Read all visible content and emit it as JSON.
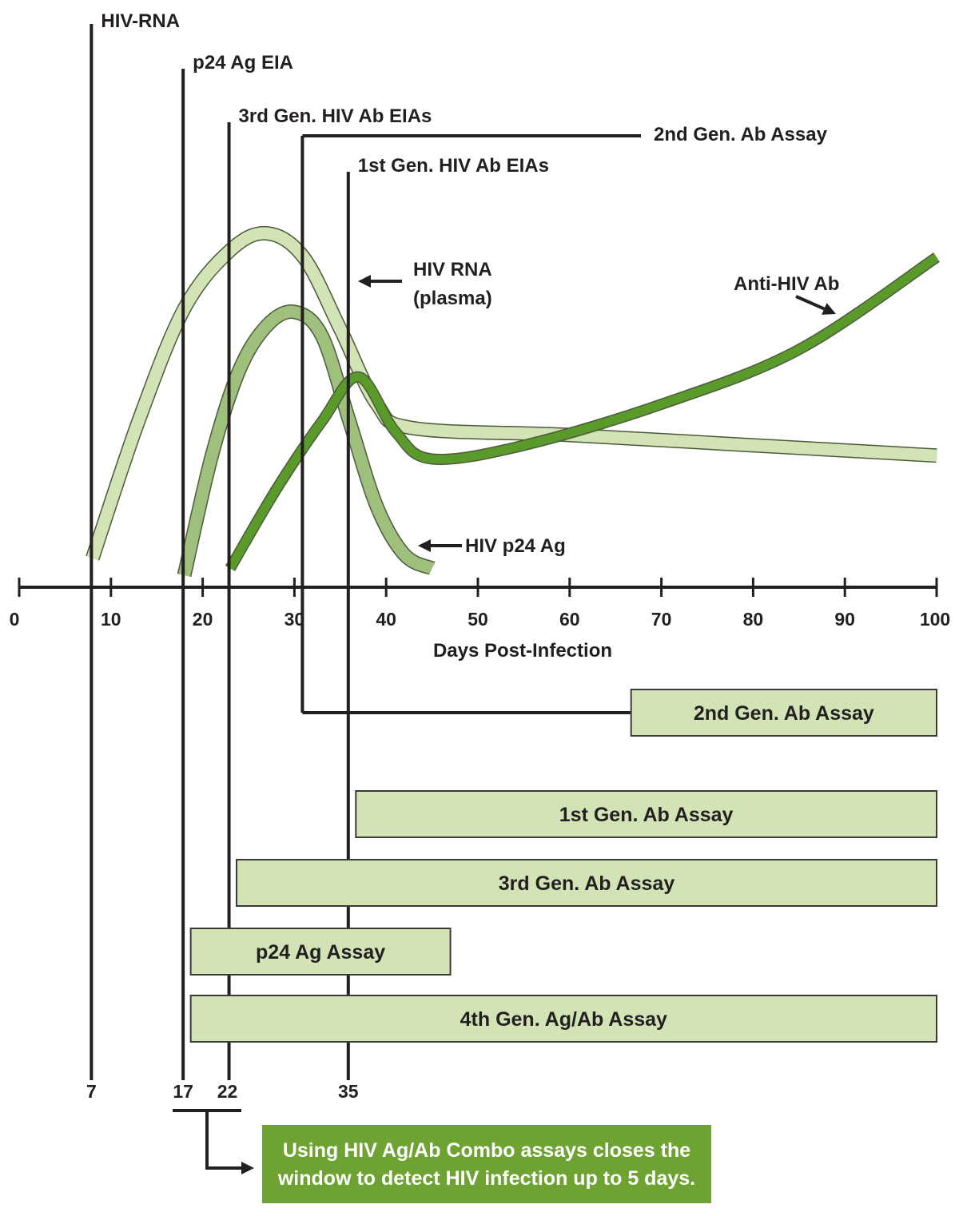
{
  "chart_data": {
    "type": "line",
    "xlabel": "Days Post-Infection",
    "xlim": [
      0,
      100
    ],
    "x_ticks": [
      "0",
      "10",
      "20",
      "30",
      "40",
      "50",
      "60",
      "70",
      "80",
      "90",
      "100"
    ],
    "series": [
      {
        "name": "HIV RNA",
        "name_line2": "(plasma)",
        "color": "#d2e4b6",
        "x": [
          8,
          13,
          18,
          23,
          27,
          31,
          35,
          39,
          43,
          60,
          80,
          100
        ],
        "y": [
          0.05,
          0.45,
          0.78,
          0.95,
          1.0,
          0.93,
          0.72,
          0.5,
          0.43,
          0.41,
          0.38,
          0.35
        ]
      },
      {
        "name": "HIV p24 Ag",
        "color": "#9ec07c",
        "x": [
          18,
          21,
          24,
          27,
          30,
          33,
          36,
          39,
          42,
          45
        ],
        "y": [
          0.0,
          0.35,
          0.6,
          0.73,
          0.77,
          0.7,
          0.45,
          0.2,
          0.06,
          0.02
        ]
      },
      {
        "name": "Anti-HIV Ab",
        "color": "#5a9a2a",
        "x": [
          23,
          28,
          33,
          37,
          41,
          45,
          55,
          70,
          85,
          100
        ],
        "y": [
          0.02,
          0.25,
          0.45,
          0.58,
          0.42,
          0.34,
          0.38,
          0.5,
          0.66,
          0.93
        ]
      }
    ],
    "assay_markers": [
      {
        "label": "HIV-RNA",
        "day": 7
      },
      {
        "label": "p24 Ag EIA",
        "day": 17
      },
      {
        "label": "3rd Gen. HIV Ab EIAs",
        "day": 22
      },
      {
        "label": "2nd Gen. Ab Assay",
        "day": 30
      },
      {
        "label": "1st Gen. HIV Ab EIAs",
        "day": 35
      }
    ],
    "window_days": [
      "7",
      "17",
      "22",
      "35"
    ],
    "bars": [
      {
        "label": "2nd Gen. Ab Assay",
        "start": 66,
        "end": 100
      },
      {
        "label": "1st Gen. Ab Assay",
        "start": 36,
        "end": 100
      },
      {
        "label": "3rd Gen. Ab Assay",
        "start": 23,
        "end": 100
      },
      {
        "label": "p24 Ag Assay",
        "start": 18,
        "end": 47
      },
      {
        "label": "4th Gen. Ag/Ab Assay",
        "start": 18,
        "end": 100
      }
    ],
    "callout": {
      "line1": "Using HIV Ag/Ab Combo assays closes the",
      "line2": "window to detect HIV infection up to 5 days."
    },
    "colors": {
      "bar_fill": "#d2e4b6",
      "callout_fill": "#6ea232",
      "ink": "#231f20"
    }
  }
}
